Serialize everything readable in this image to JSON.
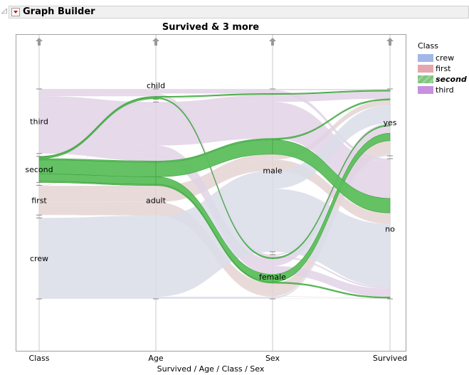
{
  "header": {
    "title": "Graph Builder"
  },
  "chart_data": {
    "type": "parallel-sets",
    "title": "Survived & 3 more",
    "xlabel": "Survived / Age / Class / Sex",
    "axes": [
      {
        "name": "Class",
        "categories": [
          "third",
          "second",
          "first",
          "crew"
        ]
      },
      {
        "name": "Age",
        "categories": [
          "child",
          "adult"
        ]
      },
      {
        "name": "Sex",
        "categories": [
          "male",
          "female"
        ]
      },
      {
        "name": "Survived",
        "categories": [
          "yes",
          "no"
        ]
      }
    ],
    "color_by": "Class",
    "selected": "second",
    "legend": {
      "title": "Class",
      "position": "right",
      "items": [
        {
          "label": "crew",
          "color": "#a3b6e8"
        },
        {
          "label": "first",
          "color": "#e6a6ad"
        },
        {
          "label": "second",
          "color": "#7fc47f"
        },
        {
          "label": "third",
          "color": "#c890e0"
        }
      ]
    },
    "faded_colors": {
      "crew": "#d9dde8",
      "first": "#e5d3d4",
      "third": "#e2d2e6"
    },
    "highlight_color": "#5cbf5c",
    "counts": [
      [
        "first",
        "child",
        "male",
        "yes",
        5
      ],
      [
        "first",
        "child",
        "female",
        "yes",
        1
      ],
      [
        "first",
        "adult",
        "male",
        "yes",
        57
      ],
      [
        "first",
        "adult",
        "female",
        "yes",
        140
      ],
      [
        "first",
        "adult",
        "male",
        "no",
        118
      ],
      [
        "first",
        "adult",
        "female",
        "no",
        4
      ],
      [
        "second",
        "child",
        "male",
        "yes",
        11
      ],
      [
        "second",
        "child",
        "female",
        "yes",
        13
      ],
      [
        "second",
        "adult",
        "male",
        "yes",
        14
      ],
      [
        "second",
        "adult",
        "female",
        "yes",
        80
      ],
      [
        "second",
        "adult",
        "male",
        "no",
        154
      ],
      [
        "second",
        "adult",
        "female",
        "no",
        13
      ],
      [
        "third",
        "child",
        "male",
        "yes",
        13
      ],
      [
        "third",
        "child",
        "female",
        "yes",
        14
      ],
      [
        "third",
        "adult",
        "male",
        "yes",
        75
      ],
      [
        "third",
        "adult",
        "female",
        "yes",
        76
      ],
      [
        "third",
        "child",
        "male",
        "no",
        35
      ],
      [
        "third",
        "child",
        "female",
        "no",
        17
      ],
      [
        "third",
        "adult",
        "male",
        "no",
        387
      ],
      [
        "third",
        "adult",
        "female",
        "no",
        89
      ],
      [
        "crew",
        "adult",
        "male",
        "yes",
        192
      ],
      [
        "crew",
        "adult",
        "female",
        "yes",
        20
      ],
      [
        "crew",
        "adult",
        "male",
        "no",
        670
      ],
      [
        "crew",
        "adult",
        "female",
        "no",
        3
      ]
    ]
  }
}
